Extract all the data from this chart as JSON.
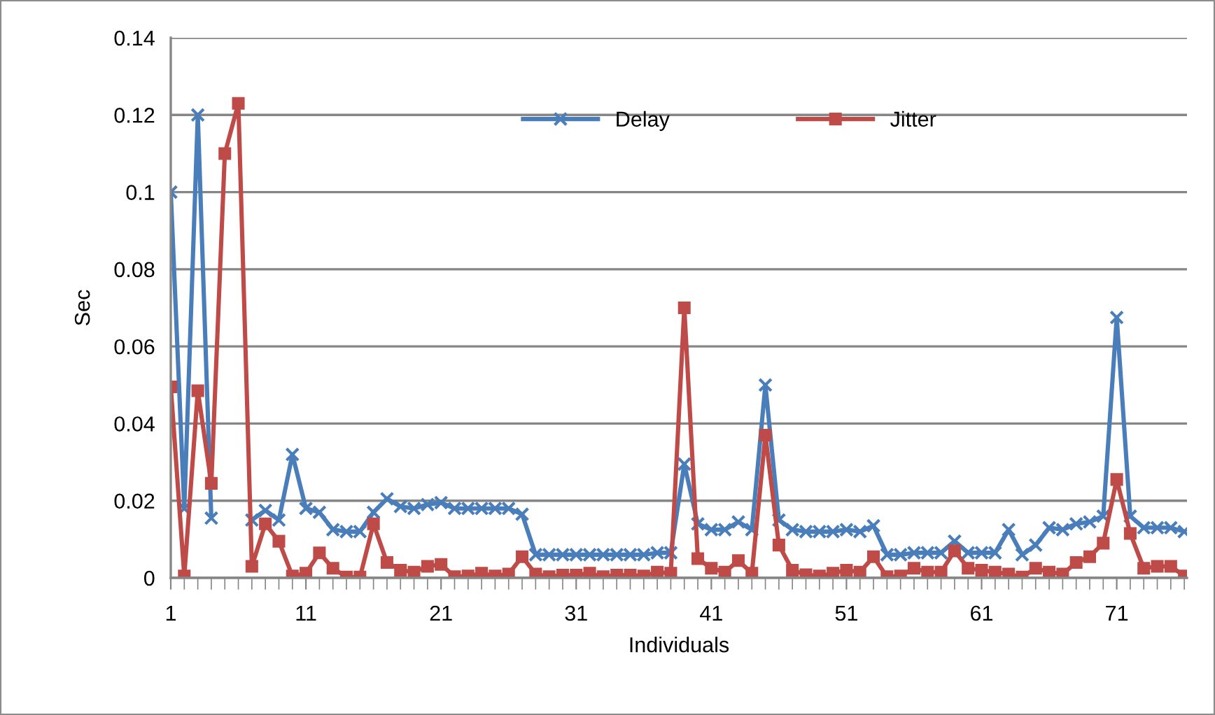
{
  "chart_data": {
    "type": "line",
    "xlabel": "Individuals",
    "ylabel": "Sec",
    "x": [
      1,
      2,
      3,
      4,
      5,
      6,
      7,
      8,
      9,
      10,
      11,
      12,
      13,
      14,
      15,
      16,
      17,
      18,
      19,
      20,
      21,
      22,
      23,
      24,
      25,
      26,
      27,
      28,
      29,
      30,
      31,
      32,
      33,
      34,
      35,
      36,
      37,
      38,
      39,
      40,
      41,
      42,
      43,
      44,
      45,
      46,
      47,
      48,
      49,
      50,
      51,
      52,
      53,
      54,
      55,
      56,
      57,
      58,
      59,
      60,
      61,
      62,
      63,
      64,
      65,
      66,
      67,
      68,
      69,
      70,
      71,
      72,
      73,
      74,
      75,
      76
    ],
    "series": [
      {
        "name": "Delay",
        "color": "#4a7ebb",
        "marker": "cross",
        "values": [
          0.1,
          0.018,
          0.12,
          0.0155,
          null,
          null,
          0.015,
          0.0175,
          0.015,
          0.032,
          0.018,
          0.017,
          0.0125,
          0.012,
          0.012,
          0.017,
          0.0205,
          0.0185,
          0.018,
          0.019,
          0.0195,
          0.018,
          0.018,
          0.018,
          0.018,
          0.018,
          0.0165,
          0.006,
          0.006,
          0.006,
          0.006,
          0.006,
          0.006,
          0.006,
          0.006,
          0.006,
          0.0065,
          0.0065,
          0.0295,
          0.014,
          0.0125,
          0.0125,
          0.0145,
          0.0125,
          0.05,
          0.015,
          0.0125,
          0.012,
          0.012,
          0.012,
          0.0125,
          0.012,
          0.0135,
          0.006,
          0.006,
          0.0065,
          0.0065,
          0.0065,
          0.0095,
          0.0065,
          0.0065,
          0.0065,
          0.0125,
          0.006,
          0.0085,
          0.013,
          0.0125,
          0.014,
          0.0145,
          0.016,
          0.0675,
          0.016,
          0.013,
          0.013,
          0.013,
          0.012
        ]
      },
      {
        "name": "Jitter",
        "color": "#be4b48",
        "marker": "square",
        "values": [
          0.0495,
          0.0005,
          0.0485,
          0.0245,
          0.11,
          0.123,
          0.003,
          0.014,
          0.0095,
          0.0005,
          0.0012,
          0.0065,
          0.0025,
          0.0002,
          0.0002,
          0.014,
          0.004,
          0.002,
          0.0015,
          0.003,
          0.0035,
          0.0003,
          0.0005,
          0.0012,
          0.0005,
          0.001,
          0.0055,
          0.001,
          0.0003,
          0.0007,
          0.0007,
          0.0012,
          0.0003,
          0.0007,
          0.0007,
          0.0005,
          0.0015,
          0.0012,
          0.07,
          0.005,
          0.0025,
          0.0015,
          0.0045,
          0.0012,
          0.037,
          0.0085,
          0.002,
          0.0008,
          0.0005,
          0.0012,
          0.002,
          0.0015,
          0.0055,
          0.0003,
          0.0005,
          0.0025,
          0.0015,
          0.0015,
          0.007,
          0.0025,
          0.002,
          0.0015,
          0.001,
          0.0002,
          0.0025,
          0.0015,
          0.001,
          0.004,
          0.0055,
          0.009,
          0.0255,
          0.0115,
          0.0025,
          0.003,
          0.003,
          0.0005
        ]
      }
    ],
    "xlim": [
      1,
      76.2
    ],
    "xticks": [
      1,
      11,
      21,
      31,
      41,
      51,
      61,
      71
    ],
    "ylim": [
      0,
      0.14
    ],
    "yticks": [
      {
        "value": 0,
        "label": "0"
      },
      0.02,
      0.04,
      0.06,
      0.08,
      0.1,
      0.12,
      0.14
    ],
    "grid": "y",
    "legend": "top",
    "line_style": "solid"
  }
}
